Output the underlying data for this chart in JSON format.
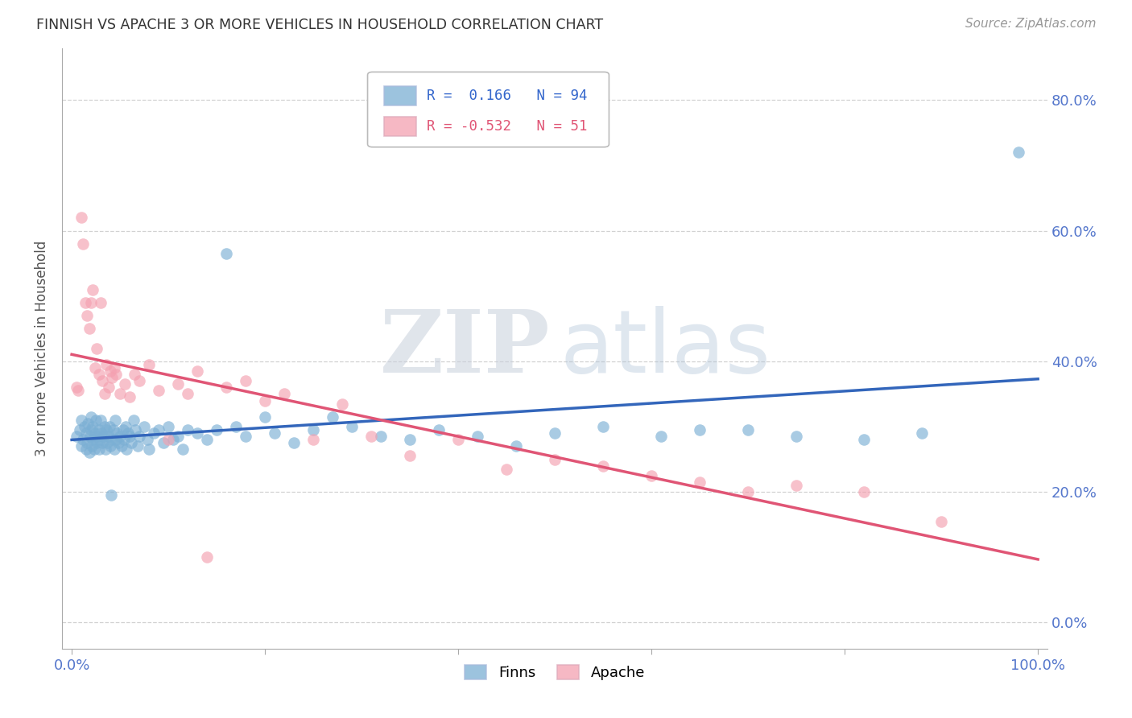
{
  "title": "FINNISH VS APACHE 3 OR MORE VEHICLES IN HOUSEHOLD CORRELATION CHART",
  "source": "Source: ZipAtlas.com",
  "ylabel": "3 or more Vehicles in Household",
  "finns_color": "#7BAFD4",
  "apache_color": "#F4A0B0",
  "finns_line_color": "#3366BB",
  "apache_line_color": "#E05575",
  "finns_x": [
    0.005,
    0.008,
    0.01,
    0.01,
    0.012,
    0.013,
    0.015,
    0.015,
    0.016,
    0.017,
    0.018,
    0.019,
    0.02,
    0.02,
    0.021,
    0.022,
    0.022,
    0.023,
    0.024,
    0.025,
    0.026,
    0.027,
    0.028,
    0.028,
    0.029,
    0.03,
    0.031,
    0.032,
    0.033,
    0.034,
    0.035,
    0.036,
    0.037,
    0.038,
    0.039,
    0.04,
    0.041,
    0.042,
    0.043,
    0.044,
    0.045,
    0.046,
    0.047,
    0.048,
    0.05,
    0.052,
    0.053,
    0.054,
    0.056,
    0.057,
    0.058,
    0.06,
    0.062,
    0.064,
    0.066,
    0.068,
    0.07,
    0.075,
    0.078,
    0.08,
    0.085,
    0.09,
    0.095,
    0.1,
    0.105,
    0.11,
    0.115,
    0.12,
    0.13,
    0.14,
    0.15,
    0.16,
    0.17,
    0.18,
    0.2,
    0.21,
    0.23,
    0.25,
    0.27,
    0.29,
    0.32,
    0.35,
    0.38,
    0.42,
    0.46,
    0.5,
    0.55,
    0.61,
    0.65,
    0.7,
    0.75,
    0.82,
    0.88,
    0.98
  ],
  "finns_y": [
    0.285,
    0.295,
    0.27,
    0.31,
    0.28,
    0.3,
    0.265,
    0.29,
    0.275,
    0.305,
    0.26,
    0.285,
    0.295,
    0.315,
    0.27,
    0.28,
    0.3,
    0.265,
    0.29,
    0.31,
    0.275,
    0.285,
    0.265,
    0.295,
    0.28,
    0.31,
    0.29,
    0.275,
    0.285,
    0.3,
    0.265,
    0.295,
    0.275,
    0.285,
    0.3,
    0.27,
    0.195,
    0.28,
    0.295,
    0.265,
    0.31,
    0.28,
    0.29,
    0.275,
    0.285,
    0.27,
    0.295,
    0.28,
    0.3,
    0.265,
    0.29,
    0.285,
    0.275,
    0.31,
    0.295,
    0.27,
    0.285,
    0.3,
    0.28,
    0.265,
    0.29,
    0.295,
    0.275,
    0.3,
    0.28,
    0.285,
    0.265,
    0.295,
    0.29,
    0.28,
    0.295,
    0.565,
    0.3,
    0.285,
    0.315,
    0.29,
    0.275,
    0.295,
    0.315,
    0.3,
    0.285,
    0.28,
    0.295,
    0.285,
    0.27,
    0.29,
    0.3,
    0.285,
    0.295,
    0.295,
    0.285,
    0.28,
    0.29,
    0.72
  ],
  "apache_x": [
    0.005,
    0.007,
    0.01,
    0.012,
    0.014,
    0.016,
    0.018,
    0.02,
    0.022,
    0.024,
    0.026,
    0.028,
    0.03,
    0.032,
    0.034,
    0.036,
    0.038,
    0.04,
    0.042,
    0.044,
    0.046,
    0.05,
    0.055,
    0.06,
    0.065,
    0.07,
    0.08,
    0.09,
    0.1,
    0.11,
    0.12,
    0.13,
    0.14,
    0.16,
    0.18,
    0.2,
    0.22,
    0.25,
    0.28,
    0.31,
    0.35,
    0.4,
    0.45,
    0.5,
    0.55,
    0.6,
    0.65,
    0.7,
    0.75,
    0.82,
    0.9
  ],
  "apache_y": [
    0.36,
    0.355,
    0.62,
    0.58,
    0.49,
    0.47,
    0.45,
    0.49,
    0.51,
    0.39,
    0.42,
    0.38,
    0.49,
    0.37,
    0.35,
    0.395,
    0.36,
    0.385,
    0.375,
    0.39,
    0.38,
    0.35,
    0.365,
    0.345,
    0.38,
    0.37,
    0.395,
    0.355,
    0.28,
    0.365,
    0.35,
    0.385,
    0.1,
    0.36,
    0.37,
    0.34,
    0.35,
    0.28,
    0.335,
    0.285,
    0.255,
    0.28,
    0.235,
    0.25,
    0.24,
    0.225,
    0.215,
    0.2,
    0.21,
    0.2,
    0.155
  ],
  "xlim": [
    -0.01,
    1.01
  ],
  "ylim": [
    -0.04,
    0.88
  ],
  "ytick_vals": [
    0.0,
    0.2,
    0.4,
    0.6,
    0.8
  ],
  "ytick_labels": [
    "0.0%",
    "20.0%",
    "40.0%",
    "60.0%",
    "80.0%"
  ],
  "xtick_vals": [
    0.0,
    0.2,
    0.4,
    0.6,
    0.8,
    1.0
  ],
  "xtick_left_label": "0.0%",
  "xtick_right_label": "100.0%"
}
